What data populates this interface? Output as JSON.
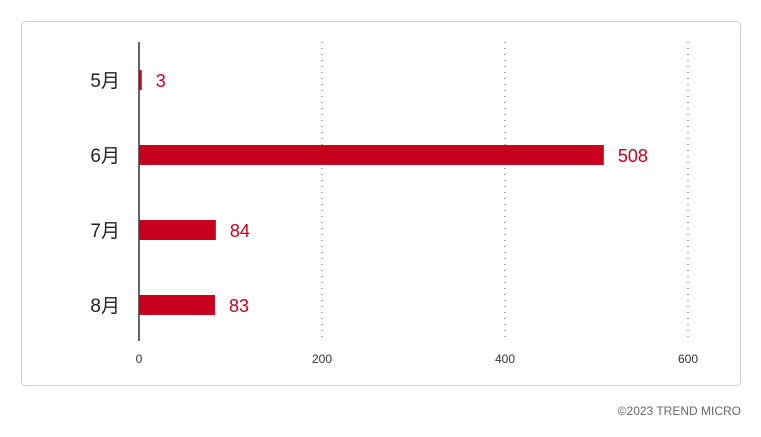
{
  "chart_data": {
    "type": "barh",
    "categories": [
      "5月",
      "6月",
      "7月",
      "8月"
    ],
    "values": [
      3,
      508,
      84,
      83
    ],
    "color": "#c8001e",
    "xlim": [
      0,
      600
    ],
    "xticks": [
      0,
      200,
      400,
      600
    ],
    "grid": true
  },
  "footer": "©2023 TREND MICRO"
}
